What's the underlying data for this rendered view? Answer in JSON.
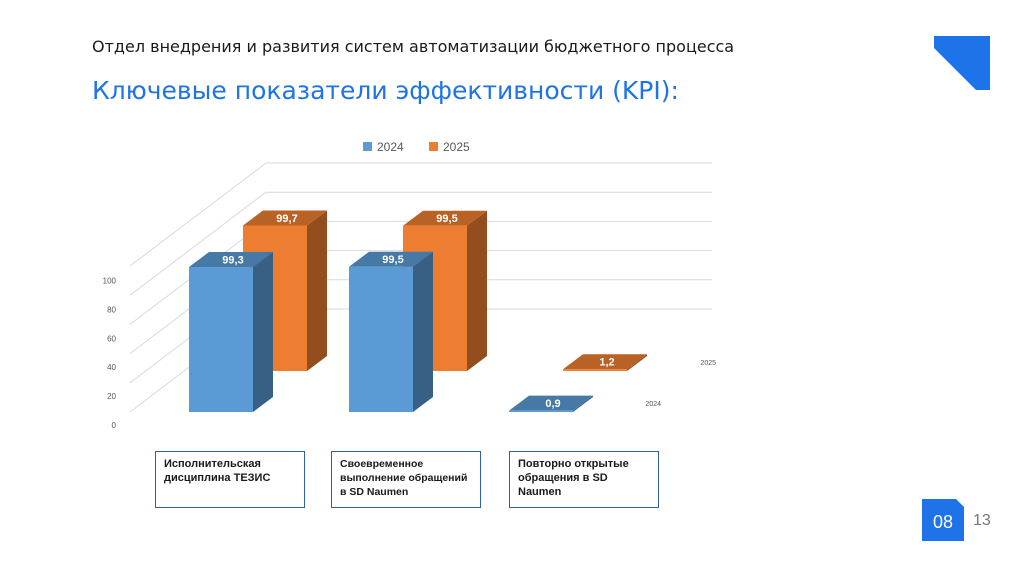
{
  "header": {
    "department": "Отдел внедрения и развития систем автоматизации бюджетного процесса",
    "title": "Ключевые показатели эффективности (KPI):"
  },
  "footer": {
    "badge": "08",
    "page_number": "13"
  },
  "colors": {
    "accent": "#1e73e8",
    "series_2024": "#5b9bd5",
    "series_2025": "#ed7d31"
  },
  "chart_data": {
    "type": "bar",
    "subtype": "3d-clustered",
    "categories": [
      "Исполнительская дисциплина ТЕЗИС",
      "Своевременное выполнение обращений в SD Naumen",
      "Повторно открытые обращения в SD Naumen"
    ],
    "series": [
      {
        "name": "2024",
        "values": [
          99.3,
          99.5,
          0.9
        ],
        "labels": [
          "99,3",
          "99,5",
          "0,9"
        ]
      },
      {
        "name": "2025",
        "values": [
          99.7,
          99.5,
          1.2
        ],
        "labels": [
          "99,7",
          "99,5",
          "1,2"
        ]
      }
    ],
    "depth_labels": [
      "2025",
      "2024"
    ],
    "yticks": [
      "0",
      "20",
      "40",
      "60",
      "80",
      "100"
    ],
    "ylim": [
      0,
      100
    ],
    "legend": "top",
    "grid": true
  }
}
